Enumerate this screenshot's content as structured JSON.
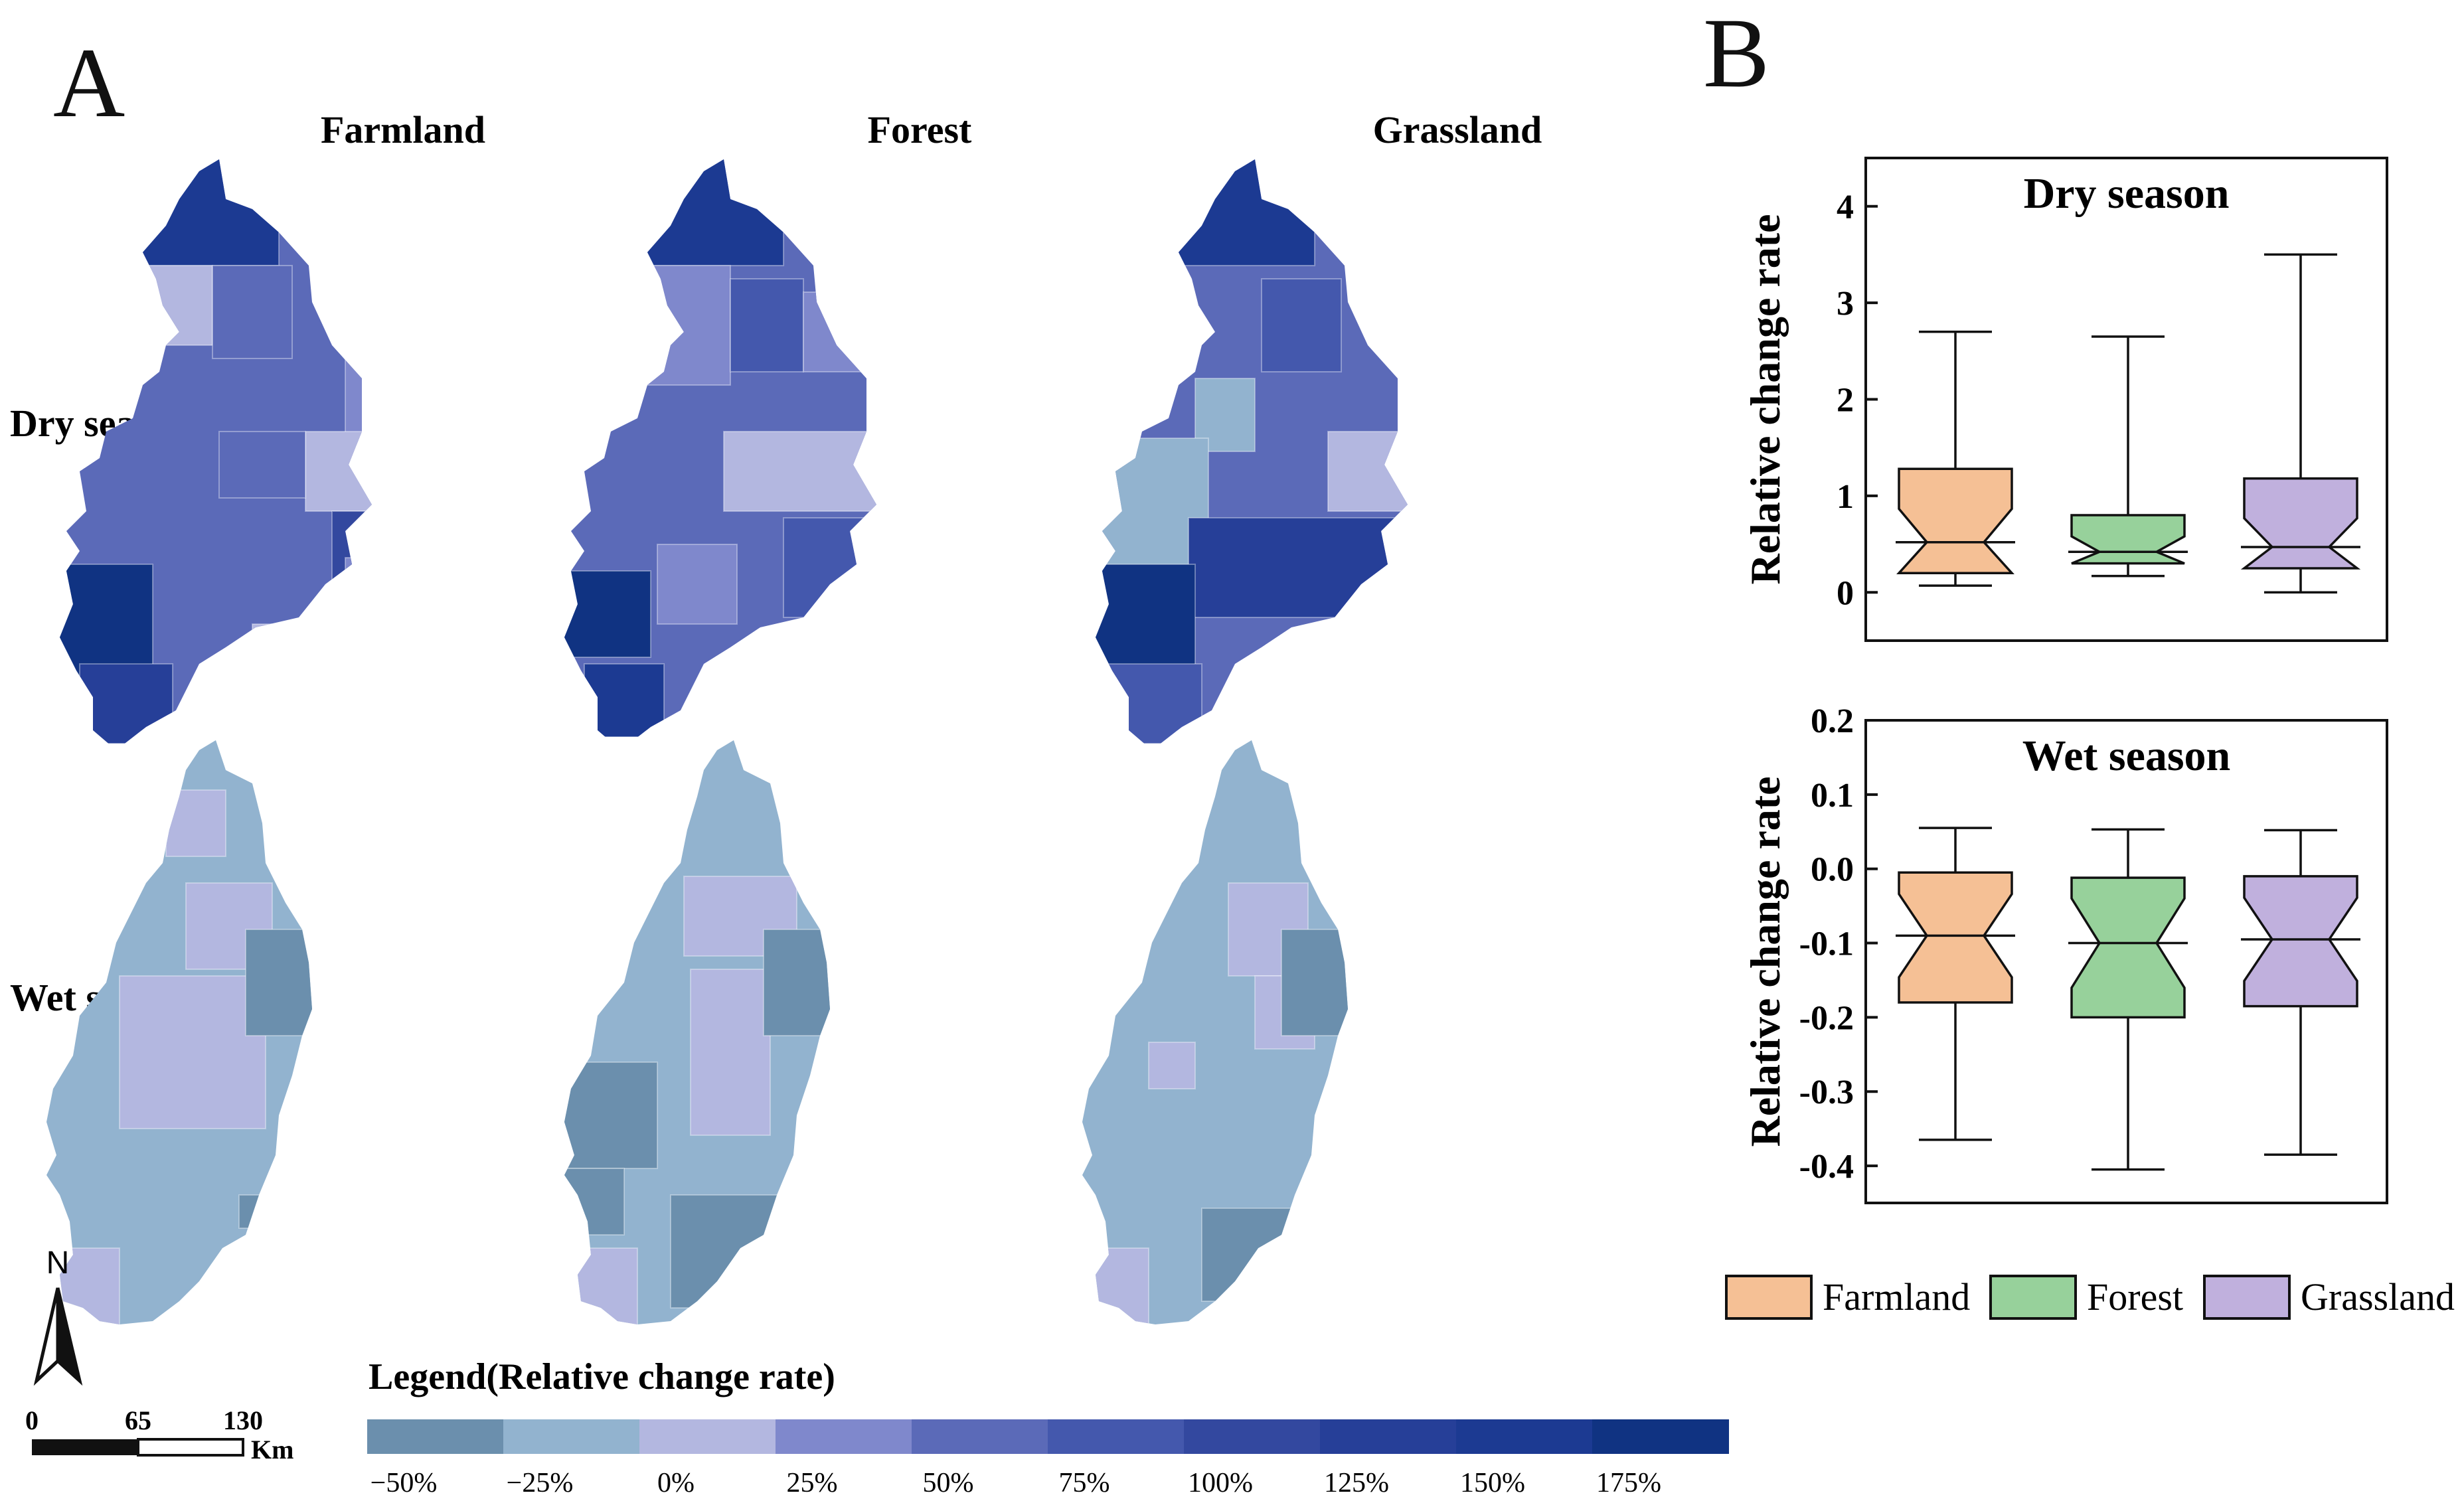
{
  "panel_a": {
    "label": "A",
    "columns": [
      "Farmland",
      "Forest",
      "Grassland"
    ],
    "rows": [
      "Dry season",
      "Wet season"
    ],
    "legend_title": "Legend(Relative change rate)",
    "legend_ticks": [
      "−50%",
      "−25%",
      "0%",
      "25%",
      "50%",
      "75%",
      "100%",
      "125%",
      "150%",
      "175%"
    ],
    "legend_colors": [
      "#6b8fad",
      "#92b3cf",
      "#b3b7e0",
      "#7f88cc",
      "#5b6ab8",
      "#4458ad",
      "#33489f",
      "#263f98",
      "#1c3a92",
      "#103382"
    ],
    "north": "N",
    "scale_ticks": [
      "0",
      "65",
      "130"
    ],
    "scale_unit": "Km"
  },
  "chart_data": {
    "type": "box",
    "panel_label": "B",
    "categories": [
      "Farmland",
      "Forest",
      "Grassland"
    ],
    "colors": {
      "Farmland": "#f5c095",
      "Forest": "#97d19b",
      "Grassland": "#c0b0dd"
    },
    "legend": [
      "Farmland",
      "Forest",
      "Grassland"
    ],
    "subplots": [
      {
        "title": "Dry season",
        "ylabel": "Relative change rate",
        "ylim": [
          -0.5,
          4.5
        ],
        "yticks": [
          0,
          1,
          2,
          3,
          4
        ],
        "ytick_labels": [
          "0",
          "1",
          "2",
          "3",
          "4"
        ],
        "boxes": [
          {
            "name": "Farmland",
            "min": 0.07,
            "q1": 0.2,
            "median": 0.52,
            "q3": 1.28,
            "max": 2.7
          },
          {
            "name": "Forest",
            "min": 0.17,
            "q1": 0.3,
            "median": 0.42,
            "q3": 0.8,
            "max": 2.65
          },
          {
            "name": "Grassland",
            "min": 0.0,
            "q1": 0.25,
            "median": 0.47,
            "q3": 1.18,
            "max": 3.5
          }
        ]
      },
      {
        "title": "Wet season",
        "ylabel": "Relative change rate",
        "ylim": [
          -0.45,
          0.2
        ],
        "yticks": [
          0.2,
          0.1,
          0.0,
          -0.1,
          -0.2,
          -0.3,
          -0.4
        ],
        "ytick_labels": [
          "0.2",
          "0.1",
          "0.0",
          "-0.1",
          "-0.2",
          "-0.3",
          "-0.4"
        ],
        "boxes": [
          {
            "name": "Farmland",
            "min": -0.365,
            "q1": -0.18,
            "median": -0.09,
            "q3": -0.005,
            "max": 0.055
          },
          {
            "name": "Forest",
            "min": -0.405,
            "q1": -0.2,
            "median": -0.1,
            "q3": -0.012,
            "max": 0.053
          },
          {
            "name": "Grassland",
            "min": -0.385,
            "q1": -0.185,
            "median": -0.095,
            "q3": -0.01,
            "max": 0.052
          }
        ]
      }
    ]
  }
}
